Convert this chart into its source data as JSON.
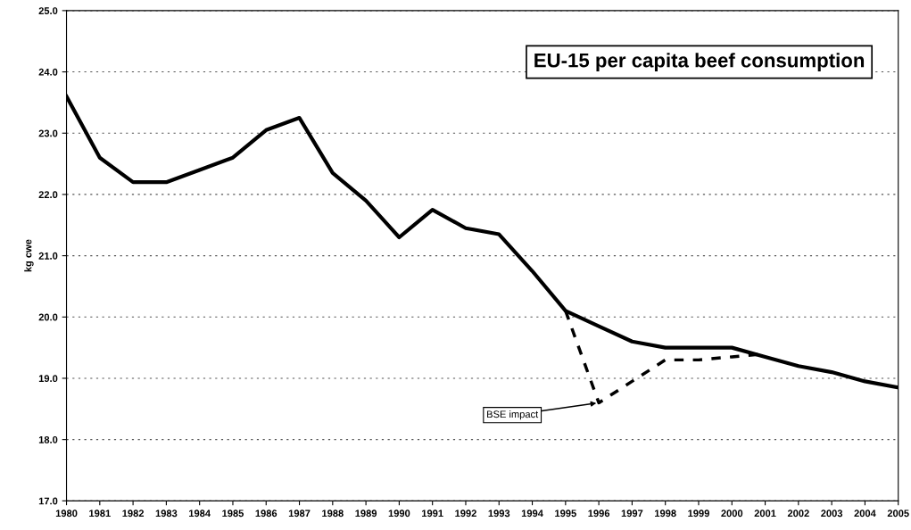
{
  "chart_data": {
    "type": "line",
    "title": "EU-15 per capita beef consumption",
    "ylabel": "kg cwe",
    "categories": [
      "1980",
      "1981",
      "1982",
      "1983",
      "1984",
      "1985",
      "1986",
      "1987",
      "1988",
      "1989",
      "1990",
      "1991",
      "1992",
      "1993",
      "1994",
      "1995",
      "1996",
      "1997",
      "1998",
      "1999",
      "2000",
      "2001",
      "2002",
      "2003",
      "2004",
      "2005"
    ],
    "series": [
      {
        "color": "#000000",
        "line_style": "solid",
        "values": [
          23.6,
          22.6,
          22.2,
          22.2,
          22.4,
          22.6,
          23.05,
          23.25,
          22.35,
          21.9,
          21.3,
          21.75,
          21.45,
          21.35,
          20.75,
          20.1,
          19.85,
          19.6,
          19.5,
          19.5,
          19.5,
          19.35,
          19.2,
          19.1,
          18.95,
          18.85
        ]
      },
      {
        "color": "#000000",
        "line_style": "dashed",
        "values": [
          null,
          null,
          null,
          null,
          null,
          null,
          null,
          null,
          null,
          null,
          null,
          null,
          null,
          null,
          null,
          20.1,
          18.6,
          18.95,
          19.3,
          19.3,
          19.35,
          19.4,
          null,
          null,
          null,
          null
        ]
      }
    ],
    "ylim": [
      17.0,
      25.0
    ],
    "yticks": [
      {
        "value": 17,
        "label": "17.0"
      },
      {
        "value": 18,
        "label": "18.0"
      },
      {
        "value": 19,
        "label": "19.0"
      },
      {
        "value": 20,
        "label": "20.0"
      },
      {
        "value": 21,
        "label": "21.0"
      },
      {
        "value": 22,
        "label": "22.0"
      },
      {
        "value": 23,
        "label": "23.0"
      },
      {
        "value": 24,
        "label": "24.0"
      },
      {
        "value": 25,
        "label": "25.0"
      }
    ],
    "grid": "y",
    "marker": "none",
    "annotations": [
      {
        "text": "BSE impact",
        "x": "1996",
        "y": 18.6
      }
    ]
  }
}
